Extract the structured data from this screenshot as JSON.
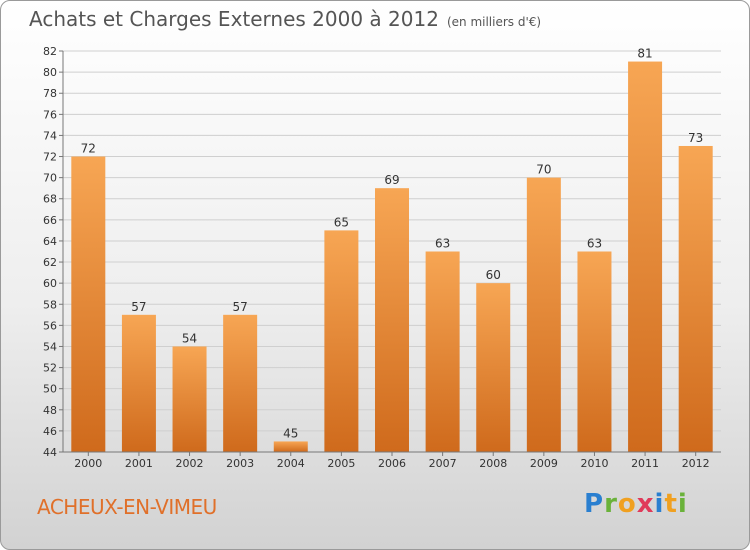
{
  "title": "Achats et Charges Externes 2000 à 2012",
  "unit_label": "(en milliers d'€)",
  "town": "ACHEUX-EN-VIMEU",
  "brand": {
    "letters": [
      "P",
      "r",
      "o",
      "x",
      "i",
      "t",
      "i"
    ],
    "colors": [
      "#2a7fd0",
      "#6ab23a",
      "#f0a020",
      "#e03a5a",
      "#2a7fd0",
      "#f0a020",
      "#6ab23a"
    ]
  },
  "colors": {
    "bar_top": "#f7a654",
    "bar_bottom": "#cf6a1c",
    "grid": "#cfcfcf",
    "axis": "#777777"
  },
  "chart_data": {
    "type": "bar",
    "categories": [
      "2000",
      "2001",
      "2002",
      "2003",
      "2004",
      "2005",
      "2006",
      "2007",
      "2008",
      "2009",
      "2010",
      "2011",
      "2012"
    ],
    "values": [
      72,
      57,
      54,
      57,
      45,
      65,
      69,
      63,
      60,
      70,
      63,
      81,
      73
    ],
    "ylim": [
      44,
      82
    ],
    "yticks": [
      44,
      46,
      48,
      50,
      52,
      54,
      56,
      58,
      60,
      62,
      64,
      66,
      68,
      70,
      72,
      74,
      76,
      78,
      80,
      82
    ],
    "grid": true,
    "data_labels": true
  }
}
